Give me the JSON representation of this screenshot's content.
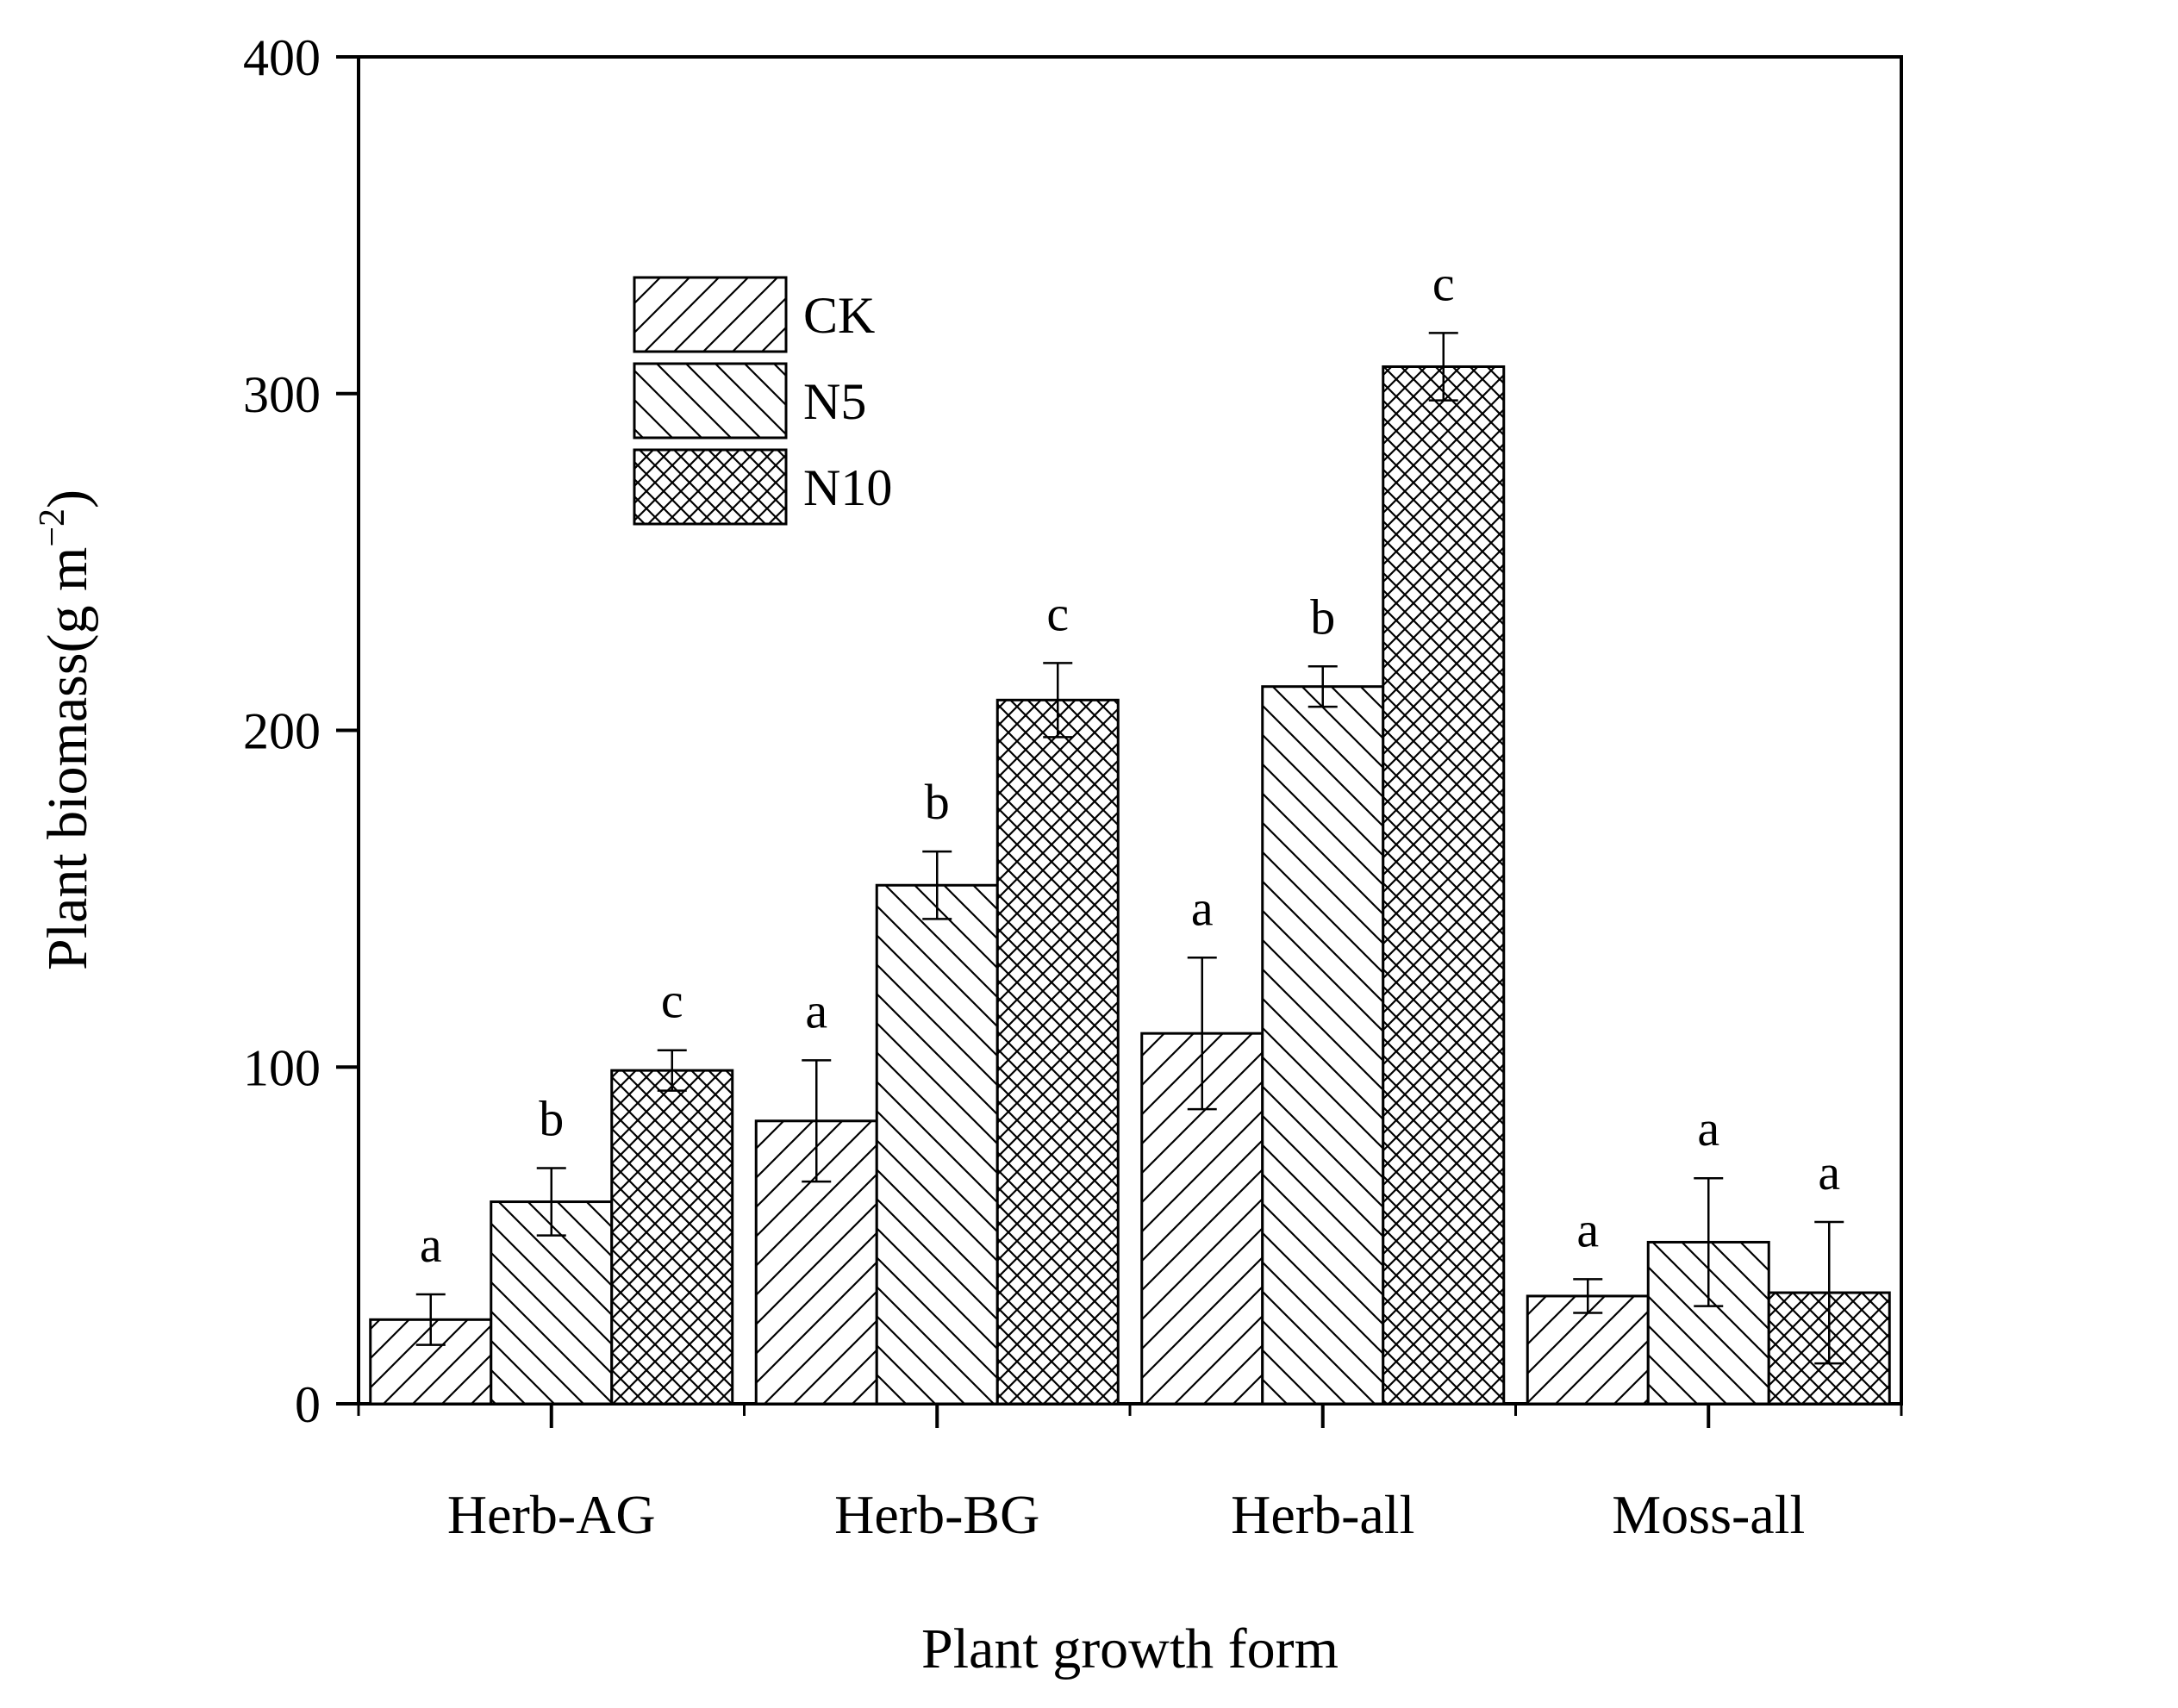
{
  "chart_data": {
    "type": "bar",
    "title": "",
    "xlabel": "Plant growth form",
    "ylabel": "Plant biomass(g m",
    "ylabel_superscript": "−2",
    "ylabel_close": ")",
    "ylim": [
      0,
      400
    ],
    "yticks": [
      "0",
      "100",
      "200",
      "300",
      "400"
    ],
    "categories": [
      "Herb-AG",
      "Herb-BG",
      "Herb-all",
      "Moss-all"
    ],
    "legend_position": "top-left",
    "series": [
      {
        "name": "CK",
        "pattern": "hatch-forward",
        "values": [
          25,
          84,
          110,
          32
        ],
        "errors": [
          7.5,
          18,
          22.5,
          5
        ],
        "letters": [
          "a",
          "a",
          "a",
          "a"
        ]
      },
      {
        "name": "N5",
        "pattern": "hatch-backward",
        "values": [
          60,
          154,
          213,
          48
        ],
        "errors": [
          10,
          10,
          6,
          19
        ],
        "letters": [
          "b",
          "b",
          "b",
          "a"
        ]
      },
      {
        "name": "N10",
        "pattern": "crosshatch",
        "values": [
          99,
          209,
          308,
          33
        ],
        "errors": [
          6,
          11,
          10,
          21
        ],
        "letters": [
          "c",
          "c",
          "c",
          "a"
        ]
      }
    ]
  }
}
